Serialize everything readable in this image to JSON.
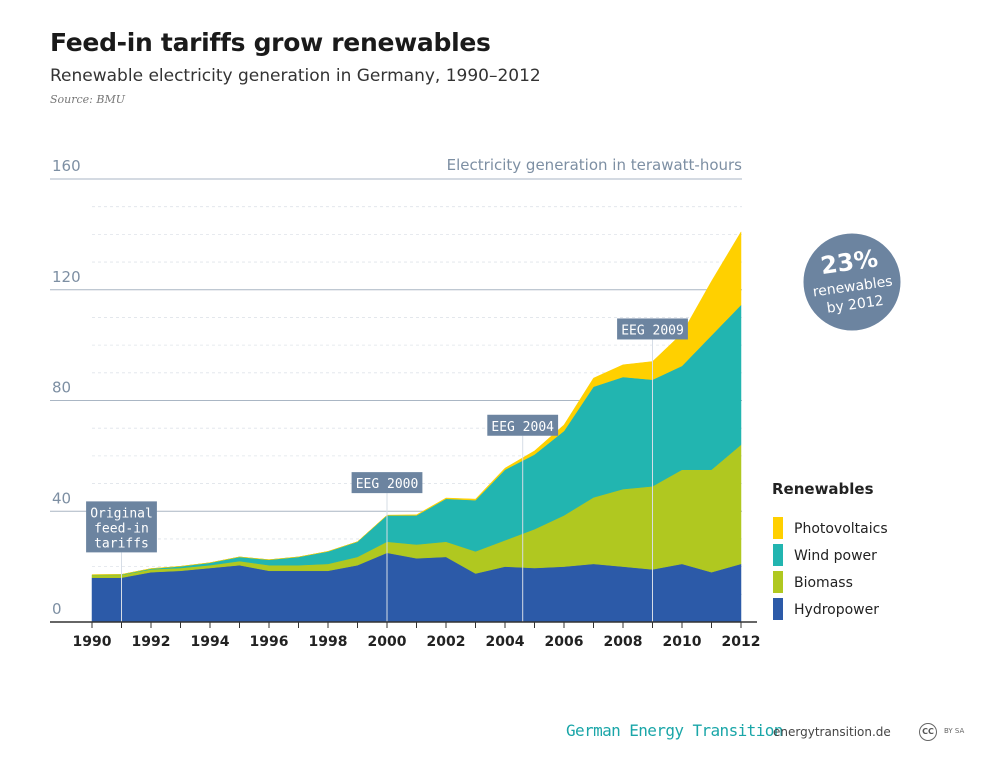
{
  "header": {
    "title": "Feed-in tariffs grow renewables",
    "subtitle": "Renewable electricity generation in Germany, 1990–2012",
    "source": "Source: BMU"
  },
  "footer": {
    "brand": "German Energy Transition",
    "site": "energytransition.de",
    "cc_icon": "CC",
    "license": "BY SA"
  },
  "badge": {
    "percent": "23%",
    "line1": "renewables",
    "line2": "by 2012"
  },
  "chart_data": {
    "type": "area",
    "stacked": true,
    "unit_label": "Electricity generation in terawatt-hours",
    "x": [
      1990,
      1991,
      1992,
      1993,
      1994,
      1995,
      1996,
      1997,
      1998,
      1999,
      2000,
      2001,
      2002,
      2003,
      2004,
      2005,
      2006,
      2007,
      2008,
      2009,
      2010,
      2011,
      2012
    ],
    "x_ticks": [
      "1990",
      "1992",
      "1994",
      "1996",
      "1998",
      "2000",
      "2002",
      "2004",
      "2006",
      "2008",
      "2010",
      "2012"
    ],
    "y_ticks": [
      "0",
      "40",
      "80",
      "120",
      "160"
    ],
    "ylim": [
      0,
      160
    ],
    "legend_title": "Renewables",
    "series": [
      {
        "name": "Hydropower",
        "color": "#2c5aa8",
        "values": [
          16,
          16,
          18,
          18.5,
          19.5,
          20.5,
          18.5,
          18.5,
          18.5,
          20.5,
          25,
          23,
          23.5,
          17.5,
          20,
          19.5,
          20,
          21,
          20,
          19,
          21,
          18,
          21
        ]
      },
      {
        "name": "Biomass",
        "color": "#b0c820",
        "values": [
          1,
          1,
          1,
          1,
          1,
          1.5,
          2,
          2,
          2.5,
          3,
          4,
          5,
          5.5,
          8,
          9.5,
          14,
          18.5,
          24,
          28,
          30,
          34,
          37,
          43
        ]
      },
      {
        "name": "Wind power",
        "color": "#22b5b0",
        "values": [
          0.1,
          0.2,
          0.3,
          0.6,
          0.9,
          1.5,
          2,
          3,
          4.5,
          5.5,
          9.5,
          10.5,
          15.5,
          18.5,
          25.5,
          27,
          30.5,
          40,
          40.5,
          38.5,
          37.5,
          48.5,
          50.5
        ]
      },
      {
        "name": "Photovoltaics",
        "color": "#ffd000",
        "values": [
          0,
          0,
          0,
          0,
          0,
          0,
          0,
          0,
          0,
          0,
          0.1,
          0.2,
          0.3,
          0.4,
          0.6,
          1.3,
          2.2,
          3.1,
          4.4,
          6.6,
          11.7,
          19.6,
          26.4
        ]
      }
    ],
    "annotations": [
      {
        "label_lines": [
          "Original",
          "feed-in",
          "tariffs"
        ],
        "year": 1991
      },
      {
        "label_lines": [
          "EEG 2000"
        ],
        "year": 2000
      },
      {
        "label_lines": [
          "EEG 2004"
        ],
        "year": 2004.6
      },
      {
        "label_lines": [
          "EEG 2009"
        ],
        "year": 2009
      }
    ],
    "grid": true
  }
}
